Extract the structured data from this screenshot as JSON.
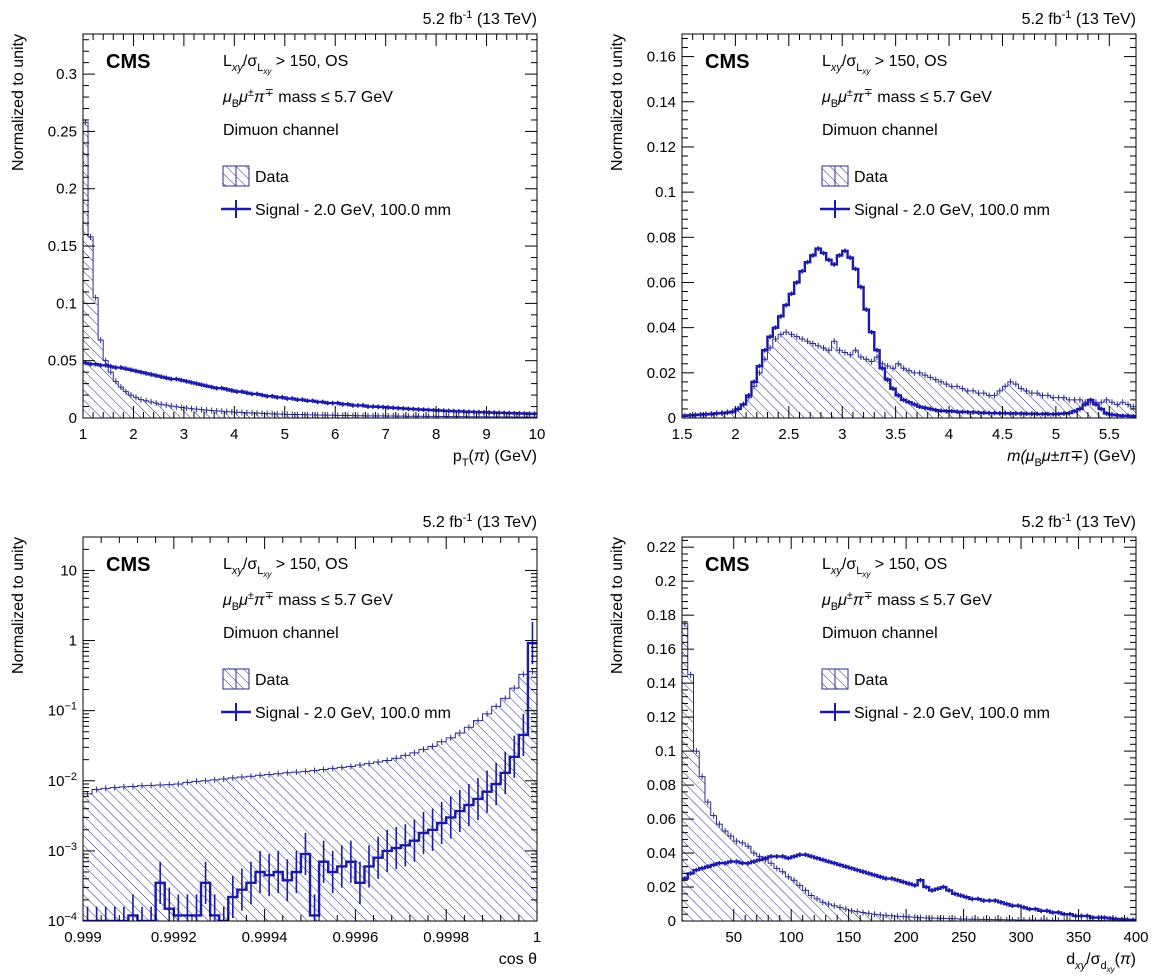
{
  "figure": {
    "lumi": "5.2 fb",
    "lumi_sup": "-1",
    "energy": " (13 TeV)",
    "cms_label": "CMS",
    "ylabel": "Normalized to unity",
    "sel_line1": "L /σ  > 150, OS",
    "sel_line2": "μ μ±π∓ mass ≤ 5.7 GeV",
    "sel_line3": "Dimuon channel",
    "legend_data": "Data",
    "legend_signal": "Signal - 2.0 GeV, 100.0 mm",
    "colors": {
      "signal": "#1a1aa8",
      "data": "#2b2b8f",
      "frame": "#000000"
    }
  },
  "chart_data": [
    {
      "type": "step",
      "xlabel": "p_T(π) (GeV)",
      "xlim": [
        1,
        10
      ],
      "ylim": [
        0,
        0.335
      ],
      "log": false,
      "xticks": [
        1,
        2,
        3,
        4,
        5,
        6,
        7,
        8,
        9,
        10
      ],
      "yticks": [
        0,
        0.05,
        0.1,
        0.15,
        0.2,
        0.25,
        0.3
      ],
      "ytick_labels": [
        "0",
        "0.05",
        "0.1",
        "0.15",
        "0.2",
        "0.25",
        "0.3"
      ],
      "edges_start": 1,
      "edges_step": 0.1,
      "series": [
        {
          "name": "Data",
          "style": "hatched",
          "values": [
            0.258,
            0.158,
            0.105,
            0.068,
            0.05,
            0.04,
            0.032,
            0.027,
            0.023,
            0.02,
            0.018,
            0.016,
            0.015,
            0.014,
            0.013,
            0.012,
            0.0112,
            0.0105,
            0.0098,
            0.0092,
            0.0087,
            0.0082,
            0.0077,
            0.0073,
            0.0069,
            0.0065,
            0.0062,
            0.0059,
            0.0056,
            0.0053,
            0.005,
            0.0048,
            0.0046,
            0.0044,
            0.0042,
            0.004,
            0.0038,
            0.0036,
            0.0035,
            0.0034,
            0.0032,
            0.0031,
            0.003,
            0.0029,
            0.0028,
            0.0027,
            0.0026,
            0.0025,
            0.0025,
            0.0024,
            0.0023,
            0.0022,
            0.0022,
            0.0021,
            0.002,
            0.002,
            0.0019,
            0.0019,
            0.0018,
            0.0018,
            0.0017,
            0.0017,
            0.0016,
            0.0016,
            0.0015,
            0.0015,
            0.0015,
            0.0014,
            0.0014,
            0.0014,
            0.0013,
            0.0013,
            0.0013,
            0.0012,
            0.0012,
            0.0012,
            0.0011,
            0.0011,
            0.0011,
            0.0011,
            0.001,
            0.001,
            0.001,
            0.001,
            0.001,
            0.0009,
            0.0009,
            0.0009,
            0.0009,
            0.0009
          ]
        },
        {
          "name": "Signal - 2.0 GeV, 100.0 mm",
          "style": "line",
          "values": [
            0.048,
            0.047,
            0.047,
            0.046,
            0.046,
            0.045,
            0.044,
            0.044,
            0.043,
            0.042,
            0.041,
            0.04,
            0.039,
            0.038,
            0.037,
            0.036,
            0.035,
            0.034,
            0.034,
            0.033,
            0.032,
            0.031,
            0.03,
            0.029,
            0.028,
            0.027,
            0.026,
            0.026,
            0.025,
            0.024,
            0.023,
            0.023,
            0.022,
            0.021,
            0.021,
            0.02,
            0.019,
            0.019,
            0.018,
            0.018,
            0.017,
            0.017,
            0.016,
            0.016,
            0.015,
            0.015,
            0.014,
            0.014,
            0.013,
            0.013,
            0.013,
            0.012,
            0.012,
            0.011,
            0.011,
            0.011,
            0.01,
            0.01,
            0.0098,
            0.0095,
            0.0092,
            0.0089,
            0.0086,
            0.0083,
            0.008,
            0.0078,
            0.0075,
            0.0073,
            0.007,
            0.0068,
            0.0066,
            0.0064,
            0.0062,
            0.006,
            0.0058,
            0.0056,
            0.0054,
            0.0053,
            0.0051,
            0.005,
            0.0048,
            0.0047,
            0.0045,
            0.0044,
            0.0043,
            0.0041,
            0.004,
            0.0039,
            0.0038,
            0.0037
          ]
        }
      ]
    },
    {
      "type": "step",
      "xlabel": "m(μ μ±π∓) (GeV)",
      "xlim": [
        1.5,
        5.75
      ],
      "ylim": [
        0,
        0.17
      ],
      "log": false,
      "xticks": [
        1.5,
        2,
        2.5,
        3,
        3.5,
        4,
        4.5,
        5,
        5.5
      ],
      "yticks": [
        0,
        0.02,
        0.04,
        0.06,
        0.08,
        0.1,
        0.12,
        0.14,
        0.16
      ],
      "ytick_labels": [
        "0",
        "0.02",
        "0.04",
        "0.06",
        "0.08",
        "0.1",
        "0.12",
        "0.14",
        "0.16"
      ],
      "edges_start": 1.5,
      "edges_step": 0.05,
      "series": [
        {
          "name": "Data",
          "style": "hatched",
          "values": [
            0.0008,
            0.001,
            0.0012,
            0.0014,
            0.0016,
            0.0018,
            0.002,
            0.0022,
            0.0025,
            0.003,
            0.004,
            0.006,
            0.009,
            0.014,
            0.02,
            0.026,
            0.031,
            0.035,
            0.037,
            0.038,
            0.037,
            0.036,
            0.035,
            0.034,
            0.033,
            0.032,
            0.031,
            0.03,
            0.034,
            0.03,
            0.029,
            0.028,
            0.03,
            0.027,
            0.026,
            0.025,
            0.027,
            0.024,
            0.023,
            0.022,
            0.024,
            0.022,
            0.021,
            0.02,
            0.02,
            0.019,
            0.018,
            0.017,
            0.016,
            0.015,
            0.014,
            0.014,
            0.013,
            0.012,
            0.012,
            0.011,
            0.011,
            0.01,
            0.01,
            0.012,
            0.014,
            0.016,
            0.015,
            0.013,
            0.012,
            0.011,
            0.011,
            0.01,
            0.01,
            0.009,
            0.009,
            0.009,
            0.008,
            0.008,
            0.008,
            0.007,
            0.007,
            0.007,
            0.007,
            0.008,
            0.007,
            0.006,
            0.007,
            0.006,
            0.005
          ]
        },
        {
          "name": "Signal - 2.0 GeV, 100.0 mm",
          "style": "line",
          "values": [
            0.001,
            0.0012,
            0.0013,
            0.0015,
            0.0016,
            0.0018,
            0.002,
            0.0022,
            0.0024,
            0.0028,
            0.004,
            0.006,
            0.01,
            0.016,
            0.023,
            0.03,
            0.036,
            0.04,
            0.045,
            0.05,
            0.055,
            0.06,
            0.065,
            0.069,
            0.072,
            0.075,
            0.073,
            0.07,
            0.068,
            0.072,
            0.074,
            0.071,
            0.066,
            0.058,
            0.048,
            0.038,
            0.03,
            0.022,
            0.017,
            0.013,
            0.01,
            0.008,
            0.007,
            0.006,
            0.005,
            0.0045,
            0.004,
            0.0035,
            0.0032,
            0.003,
            0.003,
            0.0028,
            0.0027,
            0.0026,
            0.0025,
            0.0024,
            0.0023,
            0.0022,
            0.0022,
            0.0021,
            0.0021,
            0.002,
            0.002,
            0.002,
            0.0019,
            0.0019,
            0.0018,
            0.0018,
            0.0018,
            0.0017,
            0.0018,
            0.002,
            0.0022,
            0.003,
            0.004,
            0.006,
            0.008,
            0.006,
            0.004,
            0.002,
            0.0015,
            0.0012,
            0.001,
            0.001,
            0.0008
          ]
        }
      ]
    },
    {
      "type": "step",
      "xlabel": "cos θ",
      "xlim": [
        0.999,
        1.0
      ],
      "ylim": [
        0.0001,
        30
      ],
      "log": true,
      "xticks": [
        0.999,
        0.9992,
        0.9994,
        0.9996,
        0.9998,
        1.0
      ],
      "xtick_labels": [
        "0.999",
        "0.9992",
        "0.9994",
        "0.9996",
        "0.9998",
        "1"
      ],
      "yticks": [
        0.0001,
        0.001,
        0.01,
        0.1,
        1,
        10
      ],
      "ytick_labels": [
        "10−4",
        "10−3",
        "10−2",
        "10−1",
        "1",
        "10"
      ],
      "edges_start": 0.999,
      "edges_step": 2e-05,
      "series": [
        {
          "name": "Data",
          "style": "hatched",
          "values": [
            0.0065,
            0.0075,
            0.0078,
            0.008,
            0.0082,
            0.0083,
            0.0085,
            0.0086,
            0.0087,
            0.0088,
            0.009,
            0.0095,
            0.0098,
            0.01,
            0.0103,
            0.0106,
            0.011,
            0.0113,
            0.0116,
            0.012,
            0.0123,
            0.0126,
            0.013,
            0.0133,
            0.0136,
            0.014,
            0.0145,
            0.015,
            0.0155,
            0.016,
            0.0168,
            0.0176,
            0.0185,
            0.0195,
            0.021,
            0.023,
            0.025,
            0.028,
            0.031,
            0.036,
            0.041,
            0.048,
            0.058,
            0.072,
            0.09,
            0.115,
            0.15,
            0.21,
            0.33,
            0.36
          ]
        },
        {
          "name": "Signal - 2.0 GeV, 100.0 mm",
          "style": "line",
          "values": [
            8e-05,
            8e-05,
            8e-05,
            8e-05,
            8e-05,
            0.00012,
            8e-05,
            8e-05,
            0.00035,
            0.00015,
            0.00012,
            0.00012,
            0.00012,
            0.00035,
            0.00012,
            8e-05,
            0.00022,
            0.00028,
            0.00035,
            0.0005,
            0.00045,
            0.0005,
            0.00038,
            0.0005,
            0.0009,
            0.00012,
            0.0007,
            0.0005,
            0.0006,
            0.0007,
            0.00035,
            0.0006,
            0.0008,
            0.001,
            0.0011,
            0.0012,
            0.0014,
            0.0018,
            0.002,
            0.0025,
            0.003,
            0.0037,
            0.0045,
            0.0055,
            0.007,
            0.009,
            0.013,
            0.022,
            0.045,
            0.92
          ]
        }
      ]
    },
    {
      "type": "step",
      "xlabel": "d  /σ  (π)",
      "xlim": [
        5,
        400
      ],
      "ylim": [
        0,
        0.226
      ],
      "log": false,
      "xticks": [
        50,
        100,
        150,
        200,
        250,
        300,
        350,
        400
      ],
      "yticks": [
        0,
        0.02,
        0.04,
        0.06,
        0.08,
        0.1,
        0.12,
        0.14,
        0.16,
        0.18,
        0.2,
        0.22
      ],
      "ytick_labels": [
        "0",
        "0.02",
        "0.04",
        "0.06",
        "0.08",
        "0.1",
        "0.12",
        "0.14",
        "0.16",
        "0.18",
        "0.2",
        "0.22"
      ],
      "edges_start": 5,
      "edges_step": 5,
      "series": [
        {
          "name": "Data",
          "style": "hatched",
          "values": [
            0.175,
            0.145,
            0.1,
            0.085,
            0.07,
            0.062,
            0.057,
            0.053,
            0.05,
            0.047,
            0.046,
            0.044,
            0.04,
            0.038,
            0.036,
            0.034,
            0.031,
            0.029,
            0.026,
            0.024,
            0.021,
            0.018,
            0.015,
            0.013,
            0.011,
            0.01,
            0.009,
            0.008,
            0.007,
            0.006,
            0.0055,
            0.005,
            0.0045,
            0.004,
            0.0036,
            0.0034,
            0.003,
            0.0028,
            0.0026,
            0.0024,
            0.0022,
            0.002,
            0.0018,
            0.0017,
            0.0016,
            0.0015,
            0.0014,
            0.0013,
            0.0012,
            0.0011,
            0.001,
            0.001,
            0.0009,
            0.0009,
            0.0008,
            0.0008,
            0.0007,
            0.0007,
            0.0006,
            0.0006,
            0.0006,
            0.0005,
            0.0005,
            0.0005,
            0.0004,
            0.0004,
            0.0004,
            0.0004,
            0.0003,
            0.0003,
            0.0003,
            0.0003,
            0.0003,
            0.0002,
            0.0002,
            0.0002,
            0.0002,
            0.0002,
            0.0002
          ]
        },
        {
          "name": "Signal - 2.0 GeV, 100.0 mm",
          "style": "line",
          "values": [
            0.025,
            0.028,
            0.03,
            0.031,
            0.032,
            0.033,
            0.034,
            0.034,
            0.035,
            0.035,
            0.034,
            0.034,
            0.035,
            0.036,
            0.037,
            0.038,
            0.038,
            0.038,
            0.037,
            0.038,
            0.039,
            0.039,
            0.038,
            0.037,
            0.036,
            0.035,
            0.034,
            0.033,
            0.032,
            0.031,
            0.03,
            0.029,
            0.028,
            0.027,
            0.026,
            0.025,
            0.025,
            0.024,
            0.023,
            0.022,
            0.021,
            0.024,
            0.02,
            0.018,
            0.019,
            0.02,
            0.018,
            0.016,
            0.015,
            0.014,
            0.013,
            0.013,
            0.012,
            0.012,
            0.012,
            0.011,
            0.01,
            0.009,
            0.009,
            0.008,
            0.007,
            0.007,
            0.006,
            0.006,
            0.005,
            0.005,
            0.004,
            0.004,
            0.003,
            0.003,
            0.003,
            0.002,
            0.002,
            0.002,
            0.0015,
            0.0012,
            0.001,
            0.0008,
            0.0006
          ]
        }
      ]
    }
  ]
}
